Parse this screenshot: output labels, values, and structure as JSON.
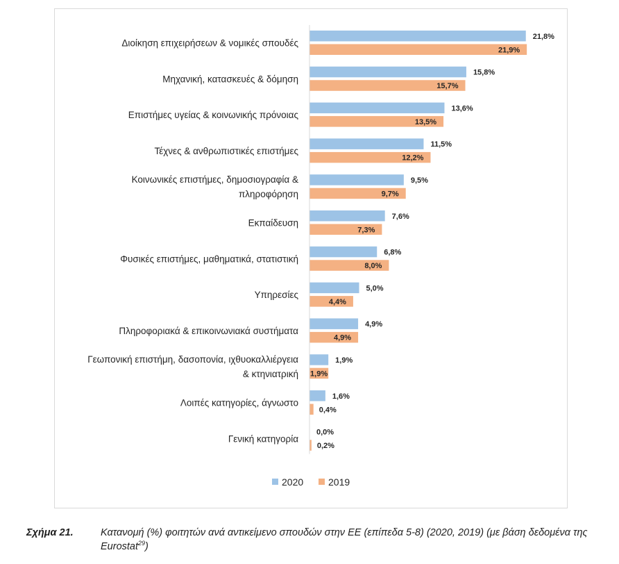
{
  "chart_data": {
    "type": "bar",
    "orientation": "horizontal",
    "categories": [
      "Διοίκηση επιχειρήσεων & νομικές σπουδές",
      "Μηχανική, κατασκευές & δόμηση",
      "Επιστήμες υγείας & κοινωνικής πρόνοιας",
      "Τέχνες & ανθρωπιστικές επιστήμες",
      "Κοινωνικές επιστήμες, δημοσιογραφία & πληροφόρηση",
      "Εκπαίδευση",
      "Φυσικές επιστήμες, μαθηματικά, στατιστική",
      "Υπηρεσίες",
      "Πληροφοριακά & επικοινωνιακά συστήματα",
      "Γεωπονική επιστήμη, δασοπονία, ιχθυοκαλλιέργεια & κτηνιατρική",
      "Λοιπές κατηγορίες, άγνωστο",
      "Γενική κατηγορία"
    ],
    "category_lines": [
      [
        "Διοίκηση επιχειρήσεων & νομικές σπουδές"
      ],
      [
        "Μηχανική, κατασκευές & δόμηση"
      ],
      [
        "Επιστήμες υγείας & κοινωνικής πρόνοιας"
      ],
      [
        "Τέχνες & ανθρωπιστικές επιστήμες"
      ],
      [
        "Κοινωνικές επιστήμες, δημοσιογραφία &",
        "πληροφόρηση"
      ],
      [
        "Εκπαίδευση"
      ],
      [
        "Φυσικές επιστήμες, μαθηματικά, στατιστική"
      ],
      [
        "Υπηρεσίες"
      ],
      [
        "Πληροφοριακά & επικοινωνιακά συστήματα"
      ],
      [
        "Γεωπονική επιστήμη, δασοπονία, ιχθυοκαλλιέργεια",
        "& κτηνιατρική"
      ],
      [
        "Λοιπές κατηγορίες, άγνωστο"
      ],
      [
        "Γενική κατηγορία"
      ]
    ],
    "series": [
      {
        "name": "2020",
        "color": "#9dc3e6",
        "values": [
          21.8,
          15.8,
          13.6,
          11.5,
          9.5,
          7.6,
          6.8,
          5.0,
          4.9,
          1.9,
          1.6,
          0.0
        ],
        "labels": [
          "21,8%",
          "15,8%",
          "13,6%",
          "11,5%",
          "9,5%",
          "7,6%",
          "6,8%",
          "5,0%",
          "4,9%",
          "1,9%",
          "1,6%",
          "0,0%"
        ]
      },
      {
        "name": "2019",
        "color": "#f4b183",
        "values": [
          21.9,
          15.7,
          13.5,
          12.2,
          9.7,
          7.3,
          8.0,
          4.4,
          4.9,
          1.9,
          0.4,
          0.2
        ],
        "labels": [
          "21,9%",
          "15,7%",
          "13,5%",
          "12,2%",
          "9,7%",
          "7,3%",
          "8,0%",
          "4,4%",
          "4,9%",
          "1,9%",
          "0,4%",
          "0,2%"
        ]
      }
    ],
    "xlim": [
      0,
      22
    ],
    "grid": false,
    "legend": "bottom",
    "unit": "%"
  },
  "caption": {
    "number": "Σχήμα 21.",
    "text": "Κατανομή (%) φοιτητών ανά αντικείμενο σπουδών στην ΕΕ (επίπεδα 5-8) (2020, 2019) (με βάση δεδομένα της Eurostat",
    "footnote": "29",
    "closing": ")"
  }
}
